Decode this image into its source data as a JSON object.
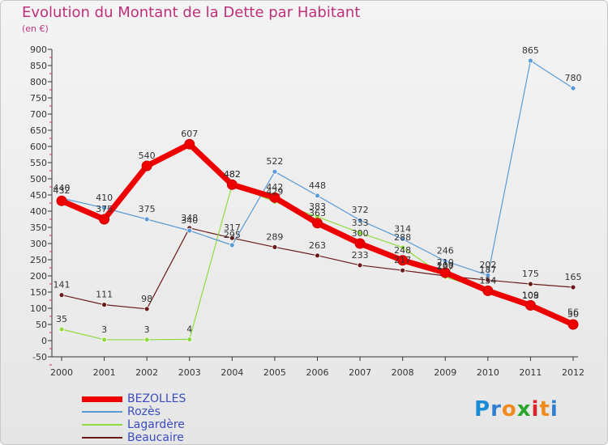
{
  "header": {
    "title": "Evolution du Montant de la Dette par Habitant",
    "unit": "(en €)"
  },
  "logo": {
    "text": "Proxiti",
    "colors": [
      "#1c8bd6",
      "#2e7fd1",
      "#f08a1c",
      "#2aa62a",
      "#d6262c",
      "#f08a1c",
      "#2e7fd1"
    ]
  },
  "chart_data": {
    "type": "line",
    "title": "Evolution du Montant de la Dette par Habitant",
    "subtitle": "(en €)",
    "x": [
      "2000",
      "2001",
      "2002",
      "2003",
      "2004",
      "2005",
      "2006",
      "2007",
      "2008",
      "2009",
      "2010",
      "2011",
      "2012"
    ],
    "ylim": [
      -50,
      900
    ],
    "yticks": [
      -50,
      0,
      50,
      100,
      150,
      200,
      250,
      300,
      350,
      400,
      450,
      500,
      550,
      600,
      650,
      700,
      750,
      800,
      850,
      900
    ],
    "grid": false,
    "legend_position": "bottom-left",
    "series": [
      {
        "name": "BEZOLLES",
        "color": "#ee0000",
        "line_width": 7,
        "marker_r": 6,
        "values": [
          432,
          375,
          540,
          607,
          482,
          442,
          363,
          300,
          248,
          210,
          154,
          109,
          50
        ]
      },
      {
        "name": "Rozès",
        "color": "#5a9bd5",
        "line_width": 1.2,
        "marker_r": 3,
        "values": [
          440,
          410,
          375,
          340,
          295,
          522,
          448,
          372,
          314,
          246,
          202,
          865,
          780
        ]
      },
      {
        "name": "Lagardère",
        "color": "#8fdb3d",
        "line_width": 1.2,
        "marker_r": 3,
        "values": [
          35,
          3,
          3,
          4,
          482,
          429,
          383,
          333,
          288,
          197,
          154,
          108,
          56
        ]
      },
      {
        "name": "Beaucaire",
        "color": "#6b1a1a",
        "line_width": 1.2,
        "marker_r": 3,
        "values": [
          141,
          111,
          98,
          348,
          317,
          289,
          263,
          233,
          217,
          200,
          187,
          175,
          165
        ]
      }
    ]
  }
}
